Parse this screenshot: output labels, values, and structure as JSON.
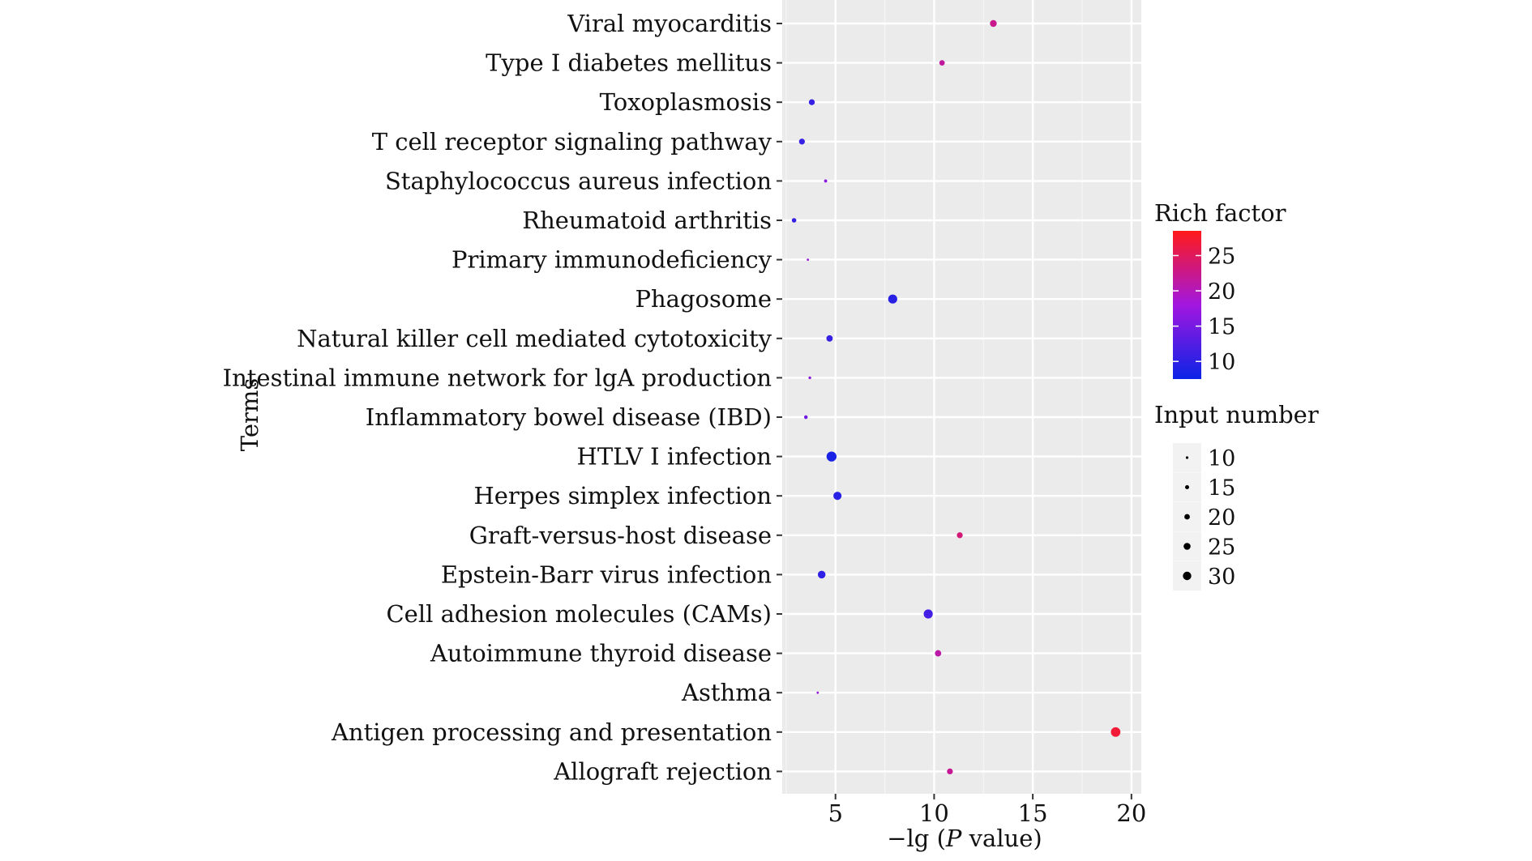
{
  "chart_data": {
    "type": "scatter",
    "xlabel_prefix": "−lg (",
    "xlabel_italic": "P",
    "xlabel_suffix": " value)",
    "ylabel": "Terms",
    "xlim": [
      2.3,
      20.5
    ],
    "xticks": [
      5,
      10,
      15,
      20
    ],
    "grid": true,
    "legend_placement": "right",
    "color_legend": {
      "title": "Rich factor",
      "ticks": [
        10,
        15,
        20,
        25
      ],
      "range": [
        7.5,
        28.5
      ],
      "low_color": "#0b23e6",
      "mid_color": "#a117e0",
      "high_color": "#ff1a1a"
    },
    "size_legend": {
      "title": "Input number",
      "values": [
        10,
        15,
        20,
        25,
        30
      ]
    },
    "points": [
      {
        "term": "Viral myocarditis",
        "x": 13.0,
        "rich": 22.5,
        "size": 18
      },
      {
        "term": "Type Ⅰ diabetes mellitus",
        "x": 10.4,
        "rich": 21.5,
        "size": 15
      },
      {
        "term": "Toxoplasmosis",
        "x": 3.8,
        "rich": 10.5,
        "size": 16
      },
      {
        "term": "T cell receptor signaling pathway",
        "x": 3.3,
        "rich": 10.5,
        "size": 16
      },
      {
        "term": "Staphylococcus aureus infection",
        "x": 4.5,
        "rich": 16.5,
        "size": 10
      },
      {
        "term": "Rheumatoid arthritis",
        "x": 2.9,
        "rich": 10.5,
        "size": 13
      },
      {
        "term": "Primary immunodeficiency",
        "x": 3.6,
        "rich": 17.5,
        "size": 8
      },
      {
        "term": "Phagosome",
        "x": 7.9,
        "rich": 9.5,
        "size": 23
      },
      {
        "term": "Natural killer cell mediated cytotoxicity",
        "x": 4.7,
        "rich": 10.5,
        "size": 17
      },
      {
        "term": "Intestinal immune network for lgA production",
        "x": 3.7,
        "rich": 16.5,
        "size": 9
      },
      {
        "term": "Inflammatory bowel disease (IBD)",
        "x": 3.5,
        "rich": 14.5,
        "size": 11
      },
      {
        "term": "HTLV Ⅰ infection",
        "x": 4.8,
        "rich": 8.5,
        "size": 25
      },
      {
        "term": "Herpes simplex infection",
        "x": 5.1,
        "rich": 9.5,
        "size": 21
      },
      {
        "term": "Graft-versus-host disease",
        "x": 11.3,
        "rich": 23.5,
        "size": 16
      },
      {
        "term": "Epstein-Barr virus infection",
        "x": 4.3,
        "rich": 10.0,
        "size": 20
      },
      {
        "term": "Cell adhesion molecules (CAMs)",
        "x": 9.7,
        "rich": 11.5,
        "size": 23
      },
      {
        "term": "Autoimmune thyroid disease",
        "x": 10.2,
        "rich": 21.0,
        "size": 17
      },
      {
        "term": "Asthma",
        "x": 4.1,
        "rich": 17.5,
        "size": 8
      },
      {
        "term": "Antigen processing and presentation",
        "x": 19.2,
        "rich": 27.0,
        "size": 24
      },
      {
        "term": "Allograft rejection",
        "x": 10.8,
        "rich": 22.0,
        "size": 16
      }
    ]
  }
}
